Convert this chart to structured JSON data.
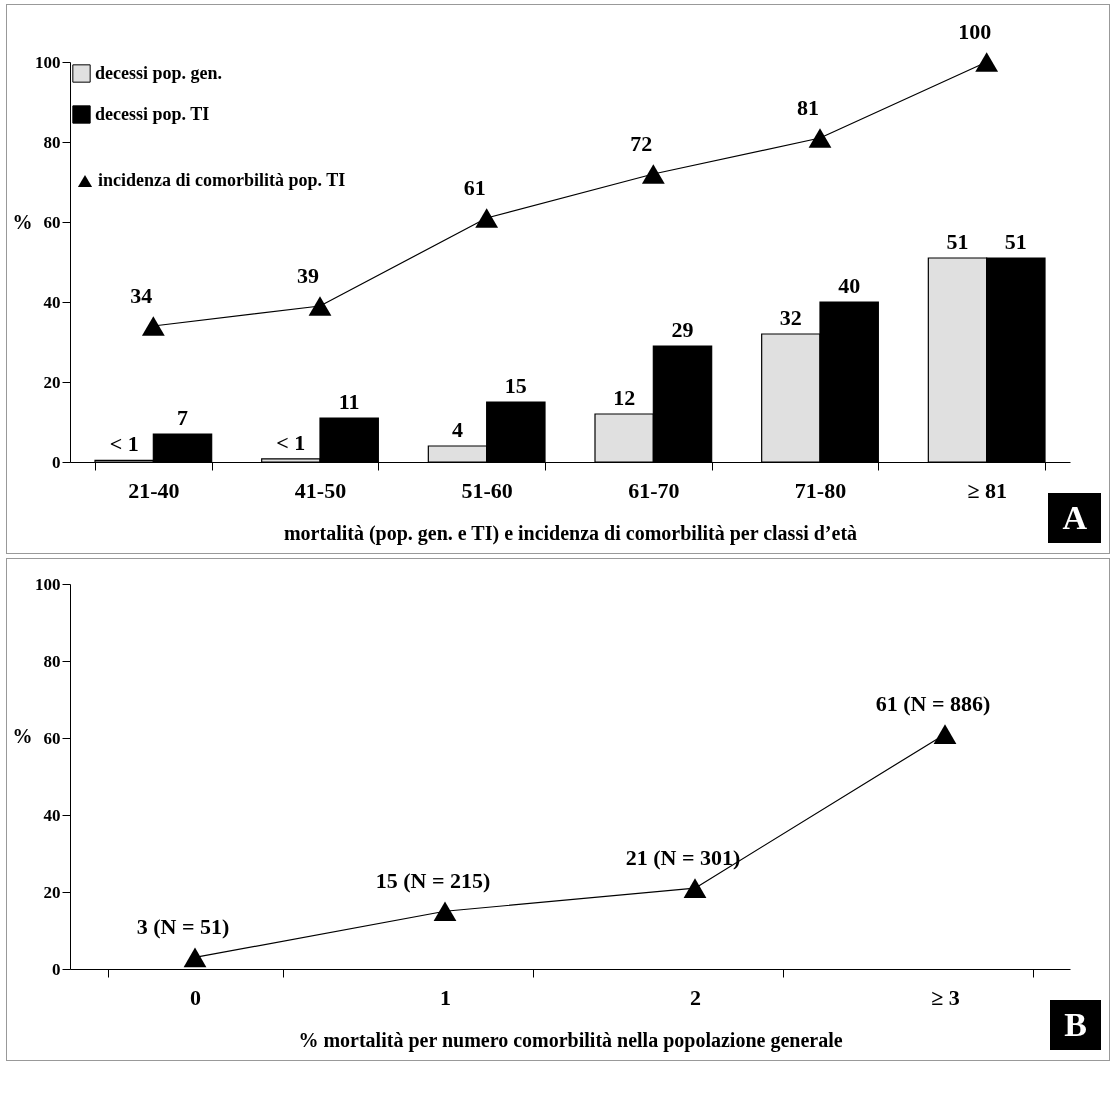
{
  "chart_data": [
    {
      "type": "bar",
      "xlabel": "mortalità (pop. gen. e TI) e incidenza di comorbilità per classi d’età",
      "ylabel": "%",
      "categories": [
        "21-40",
        "41-50",
        "51-60",
        "61-70",
        "71-80",
        "≥ 81"
      ],
      "series": [
        {
          "name": "decessi pop. gen.",
          "color": "#e0e0e0",
          "values": [
            0.4,
            0.8,
            4,
            12,
            32,
            51
          ],
          "value_labels": [
            "< 1",
            "< 1",
            "4",
            "12",
            "32",
            "51"
          ]
        },
        {
          "name": "decessi pop. TI",
          "color": "#000000",
          "values": [
            7,
            11,
            15,
            29,
            40,
            51
          ],
          "value_labels": [
            "7",
            "11",
            "15",
            "29",
            "40",
            "51"
          ]
        },
        {
          "name": "incidenza di comorbilità pop. TI",
          "type": "line",
          "color": "#000000",
          "values": [
            34,
            39,
            61,
            72,
            81,
            100
          ],
          "value_labels": [
            "34",
            "39",
            "61",
            "72",
            "81",
            "100"
          ]
        }
      ],
      "ylim": [
        0,
        100
      ],
      "yticks": [
        0,
        20,
        40,
        60,
        80,
        100
      ],
      "grid": false,
      "legend": "top left",
      "marker": "triangle",
      "annotations": [
        "A"
      ]
    },
    {
      "type": "line",
      "xlabel": "% mortalità per numero comorbilità nella popolazione generale",
      "ylabel": "%",
      "categories": [
        "0",
        "1",
        "2",
        "≥ 3"
      ],
      "series": [
        {
          "color": "#000000",
          "values": [
            3,
            15,
            21,
            61
          ],
          "value_labels": [
            "3 (N = 51)",
            "15 (N = 215)",
            "21 (N = 301)",
            "61 (N = 886)"
          ]
        }
      ],
      "ylim": [
        0,
        100
      ],
      "yticks": [
        0,
        20,
        40,
        60,
        80,
        100
      ],
      "grid": false,
      "legend": false,
      "marker": "triangle",
      "annotations": [
        "B"
      ]
    }
  ]
}
